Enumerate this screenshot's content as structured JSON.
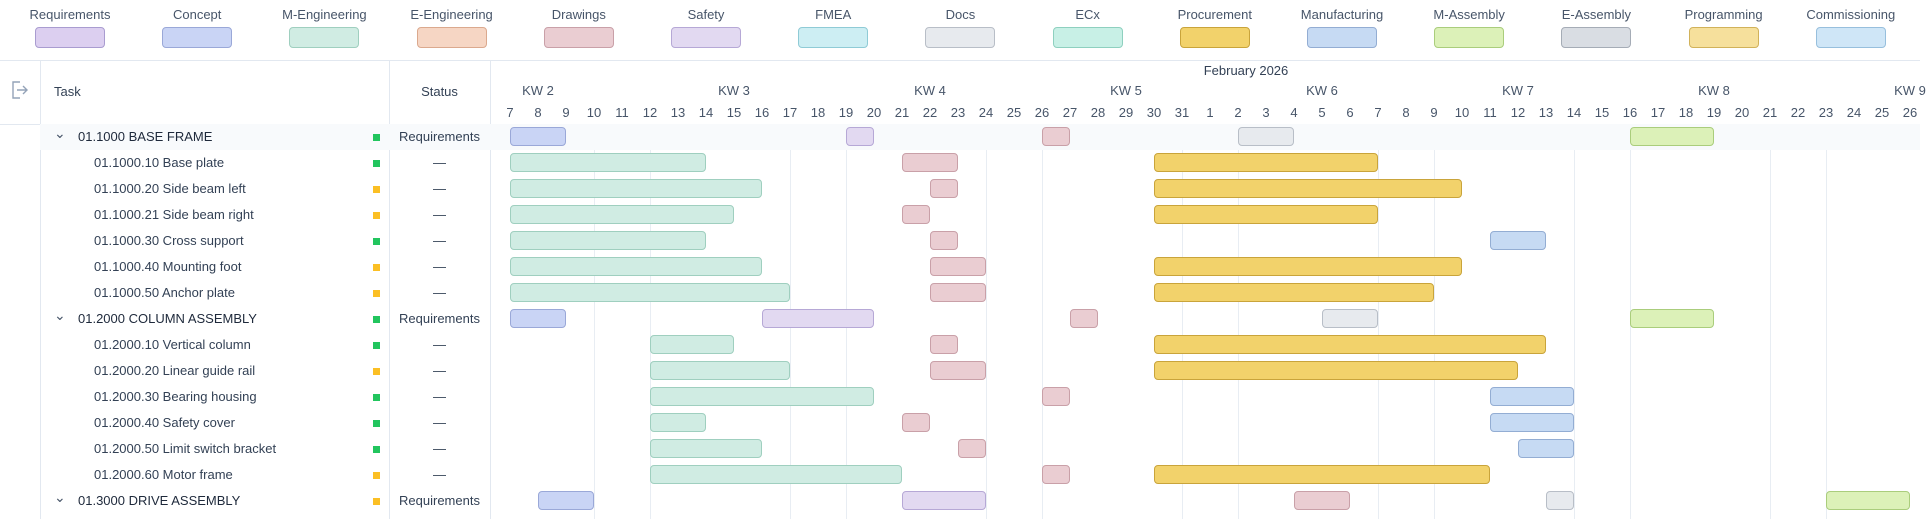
{
  "legend": [
    {
      "label": "Requirements",
      "fill": "#dccff0",
      "border": "#a99cd0"
    },
    {
      "label": "Concept",
      "fill": "#c9d4f5",
      "border": "#9aa8d8"
    },
    {
      "label": "M-Engineering",
      "fill": "#d0ece3",
      "border": "#9fcfbf"
    },
    {
      "label": "E-Engineering",
      "fill": "#f6d6c4",
      "border": "#dba98e"
    },
    {
      "label": "Drawings",
      "fill": "#eacdd2",
      "border": "#c9a0a8"
    },
    {
      "label": "Safety",
      "fill": "#e2d9f1",
      "border": "#b6a8d6"
    },
    {
      "label": "FMEA",
      "fill": "#cdeef3",
      "border": "#8fcbd6"
    },
    {
      "label": "Docs",
      "fill": "#e7eaee",
      "border": "#b8bec7"
    },
    {
      "label": "ECx",
      "fill": "#c8f0e6",
      "border": "#8ed0bf"
    },
    {
      "label": "Procurement",
      "fill": "#f2d26b",
      "border": "#c9a43b"
    },
    {
      "label": "Manufacturing",
      "fill": "#c6daf3",
      "border": "#93add3"
    },
    {
      "label": "M-Assembly",
      "fill": "#dcf1b8",
      "border": "#aacd7c"
    },
    {
      "label": "E-Assembly",
      "fill": "#d9dde3",
      "border": "#a5acb6"
    },
    {
      "label": "Programming",
      "fill": "#f6e09c",
      "border": "#d1b25a"
    },
    {
      "label": "Commissioning",
      "fill": "#cfe6f7",
      "border": "#97bfdd"
    }
  ],
  "header": {
    "task": "Task",
    "status": "Status",
    "month": "February 2026",
    "exit_icon": "exit-icon"
  },
  "timeline": {
    "first_day": "2026-01-07",
    "last_day": "2026-02-26",
    "weeks": [
      {
        "label": "KW 2",
        "date": "2026-01-08"
      },
      {
        "label": "KW 3",
        "date": "2026-01-15"
      },
      {
        "label": "KW 4",
        "date": "2026-01-22"
      },
      {
        "label": "KW 5",
        "date": "2026-01-29"
      },
      {
        "label": "KW 6",
        "date": "2026-02-05"
      },
      {
        "label": "KW 7",
        "date": "2026-02-12"
      },
      {
        "label": "KW 8",
        "date": "2026-02-19"
      },
      {
        "label": "KW 9",
        "date": "2026-02-26"
      }
    ]
  },
  "status_colors": {
    "green": "#22c55e",
    "yellow": "#fbbf24"
  },
  "rows": [
    {
      "name": "01.1000 BASE FRAME",
      "group": true,
      "dot": "green",
      "status": "Requirements",
      "bars": [
        [
          "Concept",
          "2026-01-07",
          "2026-01-09"
        ],
        [
          "Safety",
          "2026-01-19",
          "2026-01-20"
        ],
        [
          "Drawings",
          "2026-01-26",
          "2026-01-27"
        ],
        [
          "Docs",
          "2026-02-02",
          "2026-02-04"
        ],
        [
          "M-Assembly",
          "2026-02-16",
          "2026-02-19"
        ]
      ]
    },
    {
      "name": "01.1000.10 Base plate",
      "dot": "green",
      "status": "—",
      "bars": [
        [
          "M-Engineering",
          "2026-01-07",
          "2026-01-14"
        ],
        [
          "Drawings",
          "2026-01-21",
          "2026-01-23"
        ],
        [
          "Procurement",
          "2026-01-30",
          "2026-02-07"
        ]
      ]
    },
    {
      "name": "01.1000.20 Side beam left",
      "dot": "yellow",
      "status": "—",
      "bars": [
        [
          "M-Engineering",
          "2026-01-07",
          "2026-01-16"
        ],
        [
          "Drawings",
          "2026-01-22",
          "2026-01-23"
        ],
        [
          "Procurement",
          "2026-01-30",
          "2026-02-10"
        ]
      ]
    },
    {
      "name": "01.1000.21 Side beam right",
      "dot": "yellow",
      "status": "—",
      "bars": [
        [
          "M-Engineering",
          "2026-01-07",
          "2026-01-15"
        ],
        [
          "Drawings",
          "2026-01-21",
          "2026-01-22"
        ],
        [
          "Procurement",
          "2026-01-30",
          "2026-02-07"
        ]
      ]
    },
    {
      "name": "01.1000.30 Cross support",
      "dot": "green",
      "status": "—",
      "bars": [
        [
          "M-Engineering",
          "2026-01-07",
          "2026-01-14"
        ],
        [
          "Drawings",
          "2026-01-22",
          "2026-01-23"
        ],
        [
          "Manufacturing",
          "2026-02-11",
          "2026-02-13"
        ]
      ]
    },
    {
      "name": "01.1000.40 Mounting foot",
      "dot": "yellow",
      "status": "—",
      "bars": [
        [
          "M-Engineering",
          "2026-01-07",
          "2026-01-16"
        ],
        [
          "Drawings",
          "2026-01-22",
          "2026-01-24"
        ],
        [
          "Procurement",
          "2026-01-30",
          "2026-02-10"
        ]
      ]
    },
    {
      "name": "01.1000.50 Anchor plate",
      "dot": "yellow",
      "status": "—",
      "bars": [
        [
          "M-Engineering",
          "2026-01-07",
          "2026-01-17"
        ],
        [
          "Drawings",
          "2026-01-22",
          "2026-01-24"
        ],
        [
          "Procurement",
          "2026-01-30",
          "2026-02-09"
        ]
      ]
    },
    {
      "name": "01.2000 COLUMN ASSEMBLY",
      "group": true,
      "dot": "green",
      "status": "Requirements",
      "bars": [
        [
          "Concept",
          "2026-01-07",
          "2026-01-09"
        ],
        [
          "Safety",
          "2026-01-16",
          "2026-01-20"
        ],
        [
          "Drawings",
          "2026-01-27",
          "2026-01-28"
        ],
        [
          "Docs",
          "2026-02-05",
          "2026-02-07"
        ],
        [
          "M-Assembly",
          "2026-02-16",
          "2026-02-19"
        ]
      ]
    },
    {
      "name": "01.2000.10 Vertical column",
      "dot": "green",
      "status": "—",
      "bars": [
        [
          "M-Engineering",
          "2026-01-12",
          "2026-01-15"
        ],
        [
          "Drawings",
          "2026-01-22",
          "2026-01-23"
        ],
        [
          "Procurement",
          "2026-01-30",
          "2026-02-13"
        ]
      ]
    },
    {
      "name": "01.2000.20 Linear guide rail",
      "dot": "yellow",
      "status": "—",
      "bars": [
        [
          "M-Engineering",
          "2026-01-12",
          "2026-01-17"
        ],
        [
          "Drawings",
          "2026-01-22",
          "2026-01-24"
        ],
        [
          "Procurement",
          "2026-01-30",
          "2026-02-12"
        ]
      ]
    },
    {
      "name": "01.2000.30 Bearing housing",
      "dot": "green",
      "status": "—",
      "bars": [
        [
          "M-Engineering",
          "2026-01-12",
          "2026-01-20"
        ],
        [
          "Drawings",
          "2026-01-26",
          "2026-01-27"
        ],
        [
          "Manufacturing",
          "2026-02-11",
          "2026-02-14"
        ]
      ]
    },
    {
      "name": "01.2000.40 Safety cover",
      "dot": "green",
      "status": "—",
      "bars": [
        [
          "M-Engineering",
          "2026-01-12",
          "2026-01-14"
        ],
        [
          "Drawings",
          "2026-01-21",
          "2026-01-22"
        ],
        [
          "Manufacturing",
          "2026-02-11",
          "2026-02-14"
        ]
      ]
    },
    {
      "name": "01.2000.50 Limit switch bracket",
      "dot": "green",
      "status": "—",
      "bars": [
        [
          "M-Engineering",
          "2026-01-12",
          "2026-01-16"
        ],
        [
          "Drawings",
          "2026-01-23",
          "2026-01-24"
        ],
        [
          "Manufacturing",
          "2026-02-12",
          "2026-02-14"
        ]
      ]
    },
    {
      "name": "01.2000.60 Motor frame",
      "dot": "yellow",
      "status": "—",
      "bars": [
        [
          "M-Engineering",
          "2026-01-12",
          "2026-01-21"
        ],
        [
          "Drawings",
          "2026-01-26",
          "2026-01-27"
        ],
        [
          "Procurement",
          "2026-01-30",
          "2026-02-11"
        ]
      ]
    },
    {
      "name": "01.3000 DRIVE ASSEMBLY",
      "group": true,
      "dot": "yellow",
      "status": "Requirements",
      "bars": [
        [
          "Concept",
          "2026-01-08",
          "2026-01-10"
        ],
        [
          "Safety",
          "2026-01-21",
          "2026-01-24"
        ],
        [
          "Drawings",
          "2026-02-04",
          "2026-02-06"
        ],
        [
          "Docs",
          "2026-02-13",
          "2026-02-14"
        ],
        [
          "M-Assembly",
          "2026-02-23",
          "2026-02-26"
        ]
      ]
    }
  ]
}
